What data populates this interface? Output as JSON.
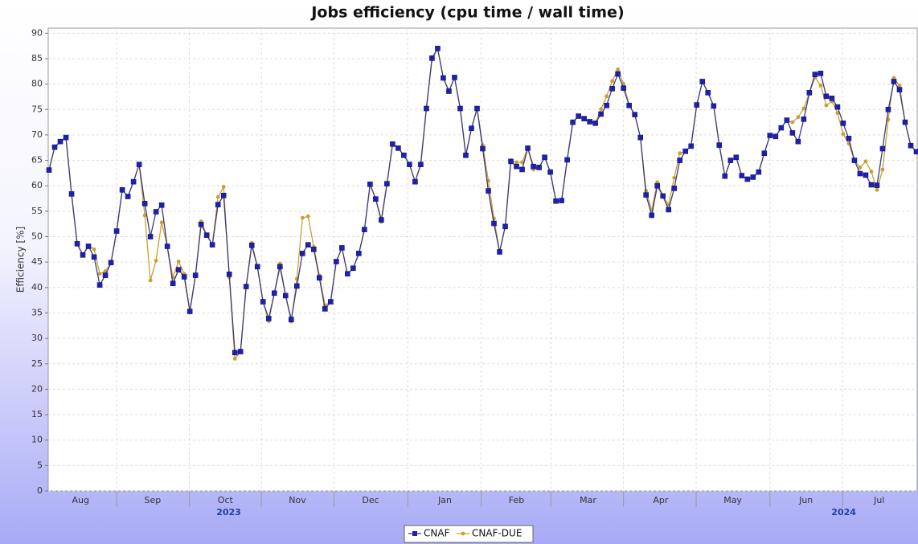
{
  "chart_data": {
    "type": "line",
    "title": "Jobs efficiency (cpu time / wall time)",
    "y_label": "Efficiency [%]",
    "ylim": [
      0,
      91
    ],
    "yticks": [
      0,
      5,
      10,
      15,
      20,
      25,
      30,
      35,
      40,
      45,
      50,
      55,
      60,
      65,
      70,
      75,
      80,
      85,
      90
    ],
    "xlim": [
      0,
      154
    ],
    "xticks": [
      {
        "value": 5.6,
        "label": "Aug"
      },
      {
        "value": 18.4,
        "label": "Sep"
      },
      {
        "value": 31.3,
        "label": "Oct"
      },
      {
        "value": 44.1,
        "label": "Nov"
      },
      {
        "value": 57.1,
        "label": "Dec"
      },
      {
        "value": 70.3,
        "label": "Jan"
      },
      {
        "value": 83,
        "label": "Feb"
      },
      {
        "value": 95.7,
        "label": "Mar"
      },
      {
        "value": 108.6,
        "label": "Apr"
      },
      {
        "value": 121.4,
        "label": "May"
      },
      {
        "value": 134.4,
        "label": "Jun"
      },
      {
        "value": 147.4,
        "label": "Jul"
      }
    ],
    "xgrid": [
      12,
      24.9,
      37.7,
      50.6,
      63.7,
      76.7,
      89.1,
      102,
      114.9,
      128,
      140.9
    ],
    "year_ticks": [
      {
        "value": 31.9,
        "label": "2023"
      },
      {
        "value": 141.1,
        "label": "2024"
      }
    ],
    "grid": true,
    "series": [
      {
        "name": "CNAF",
        "color": "#2020b0",
        "line_color": "#3a3a80",
        "marker": "square",
        "values": [
          63.1,
          67.6,
          68.7,
          69.5,
          58.4,
          48.6,
          46.4,
          48.1,
          46.0,
          40.5,
          42.4,
          44.9,
          51.1,
          59.2,
          57.9,
          60.8,
          64.2,
          56.5,
          50.0,
          54.9,
          56.2,
          48.1,
          40.8,
          43.5,
          42.1,
          35.3,
          42.4,
          52.4,
          50.3,
          48.4,
          56.3,
          58.1,
          42.6,
          27.2,
          27.4,
          40.2,
          48.3,
          44.1,
          37.2,
          33.9,
          38.9,
          44.1,
          38.4,
          33.7,
          40.3,
          46.7,
          48.4,
          47.5,
          41.9,
          35.8,
          37.2,
          45.1,
          47.8,
          42.7,
          43.8,
          46.7,
          51.4,
          60.3,
          57.4,
          53.3,
          60.4,
          68.2,
          67.4,
          66.0,
          64.2,
          60.8,
          64.2,
          75.2,
          85.1,
          87.0,
          81.2,
          78.6,
          81.3,
          75.2,
          66,
          71.3,
          75.2,
          67.3,
          59,
          52.6,
          47,
          52,
          64.8,
          63.8,
          63.2,
          67.4,
          63.8,
          63.6,
          65.6,
          62.7,
          57,
          57.1,
          65.1,
          72.5,
          73.7,
          73.2,
          72.6,
          72.3,
          74.1,
          75.8,
          79.1,
          82,
          79.2,
          75.8,
          74,
          69.5,
          58.2,
          54.2,
          60,
          58,
          55.3,
          59.5,
          65,
          66.8,
          67.8,
          75.9,
          80.5,
          78.3,
          75.7,
          68,
          61.9,
          65,
          65.6,
          62,
          61.3,
          61.7,
          62.7,
          66.4,
          69.9,
          69.7,
          71.4,
          72.9,
          70.4,
          68.7,
          73.1,
          78.3,
          81.9,
          82.1,
          77.6,
          77.2,
          75.5,
          72.3,
          69.3,
          65,
          62.4,
          62.1,
          60.2,
          60.1,
          67.3,
          75,
          80.5,
          78.9,
          72.5,
          67.9,
          66.7
        ]
      },
      {
        "name": "CNAF-DUE",
        "color": "#c8a030",
        "line_color": "#c8a030",
        "marker": "circle",
        "values": [
          63.1,
          67.6,
          68.7,
          69.5,
          58.4,
          48.6,
          46.4,
          48.3,
          47.5,
          42.7,
          43.2,
          44.9,
          51.1,
          59.2,
          57.9,
          60.8,
          64.2,
          54.2,
          41.4,
          45.3,
          52.8,
          48.1,
          42.0,
          45.1,
          42.7,
          35.3,
          42.4,
          53.0,
          50.3,
          48.4,
          57.8,
          59.8,
          42.0,
          26.0,
          27.4,
          40.2,
          48.8,
          44.1,
          37.2,
          33.4,
          38.9,
          44.7,
          38.4,
          33.3,
          41.7,
          53.7,
          54.0,
          48.0,
          42.4,
          36.5,
          37.2,
          45.1,
          47.8,
          42.7,
          43.8,
          46.7,
          51.4,
          60.3,
          57.4,
          52.9,
          60.4,
          68.2,
          67.4,
          66.0,
          64.2,
          60.8,
          64.2,
          75.2,
          84.8,
          87.0,
          81.2,
          78.6,
          81.3,
          75.2,
          66,
          71.3,
          75.2,
          68,
          61,
          53.6,
          47,
          52,
          65,
          64.6,
          64.6,
          67.4,
          63.2,
          63.6,
          65.6,
          62.7,
          57,
          57.1,
          65.1,
          72.5,
          73.7,
          73.2,
          72.6,
          72.3,
          75.1,
          77.6,
          80.6,
          82.9,
          80,
          75.8,
          74,
          69.5,
          59,
          55.2,
          60.7,
          58,
          56.3,
          61.6,
          66.4,
          66.8,
          67.8,
          75.9,
          80.5,
          78.3,
          75.7,
          68,
          61.9,
          65,
          65.6,
          62,
          61.3,
          61.7,
          62.7,
          66.4,
          69.9,
          69.7,
          71.4,
          72.9,
          72.5,
          73.5,
          75.2,
          78.3,
          81.3,
          79.7,
          75.8,
          76.6,
          74.3,
          70.2,
          68.3,
          65,
          63.6,
          64.8,
          62.8,
          59.2,
          63.2,
          73,
          81.2,
          79.7,
          72.5,
          67.9,
          66.7
        ]
      }
    ]
  }
}
